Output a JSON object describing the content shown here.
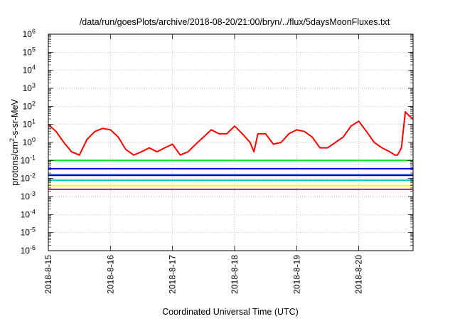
{
  "chart_data": {
    "type": "line",
    "title": "/data/run/goesPlots/archive/2018-08-20/21:00/bryn/../flux/5daysMoonFluxes.txt",
    "xlabel": "Coordinated Universal Time (UTC)",
    "ylabel": "protons/cm²-s-sr-MeV",
    "ylabel_parts": {
      "pre": "protons/cm",
      "sup": "2",
      "post": "-s-sr-MeV"
    },
    "y_scale": "log",
    "ylim": [
      1e-06,
      1000000
    ],
    "y_ticks": [
      {
        "value": 1e-06,
        "base": "10",
        "exp": "-6"
      },
      {
        "value": 1e-05,
        "base": "10",
        "exp": "-5"
      },
      {
        "value": 0.0001,
        "base": "10",
        "exp": "-4"
      },
      {
        "value": 0.001,
        "base": "10",
        "exp": "-3"
      },
      {
        "value": 0.01,
        "base": "10",
        "exp": "-2"
      },
      {
        "value": 0.1,
        "base": "10",
        "exp": "-1"
      },
      {
        "value": 1,
        "base": "10",
        "exp": "0"
      },
      {
        "value": 10,
        "base": "10",
        "exp": "1"
      },
      {
        "value": 100,
        "base": "10",
        "exp": "2"
      },
      {
        "value": 1000,
        "base": "10",
        "exp": "3"
      },
      {
        "value": 10000,
        "base": "10",
        "exp": "4"
      },
      {
        "value": 100000,
        "base": "10",
        "exp": "5"
      },
      {
        "value": 1000000,
        "base": "10",
        "exp": "6"
      }
    ],
    "xlim": [
      "2018-08-15T00:00",
      "2018-08-20T21:00"
    ],
    "x_ticks": [
      "2018-8-15",
      "2018-8-16",
      "2018-8-17",
      "2018-8-18",
      "2018-8-19",
      "2018-8-20"
    ],
    "grid": true,
    "series": [
      {
        "color": "#ff0000",
        "x": [
          "2018-08-15T00:00",
          "2018-08-15T03:00",
          "2018-08-15T06:00",
          "2018-08-15T09:00",
          "2018-08-15T12:00",
          "2018-08-15T15:00",
          "2018-08-15T18:00",
          "2018-08-15T21:00",
          "2018-08-16T00:00",
          "2018-08-16T03:00",
          "2018-08-16T06:00",
          "2018-08-16T09:00",
          "2018-08-16T12:00",
          "2018-08-16T15:00",
          "2018-08-16T18:00",
          "2018-08-16T21:00",
          "2018-08-17T00:00",
          "2018-08-17T03:00",
          "2018-08-17T06:00",
          "2018-08-17T09:00",
          "2018-08-17T12:00",
          "2018-08-17T15:00",
          "2018-08-17T18:00",
          "2018-08-17T21:00",
          "2018-08-18T00:00",
          "2018-08-18T03:00",
          "2018-08-18T06:00",
          "2018-08-18T07:30",
          "2018-08-18T09:00",
          "2018-08-18T12:00",
          "2018-08-18T15:00",
          "2018-08-18T18:00",
          "2018-08-18T21:00",
          "2018-08-19T00:00",
          "2018-08-19T03:00",
          "2018-08-19T06:00",
          "2018-08-19T09:00",
          "2018-08-19T12:00",
          "2018-08-19T15:00",
          "2018-08-19T18:00",
          "2018-08-19T21:00",
          "2018-08-20T00:00",
          "2018-08-20T03:00",
          "2018-08-20T06:00",
          "2018-08-20T09:00",
          "2018-08-20T12:00",
          "2018-08-20T14:00",
          "2018-08-20T15:00",
          "2018-08-20T16:30",
          "2018-08-20T18:00",
          "2018-08-20T19:30",
          "2018-08-20T21:00"
        ],
        "values": [
          10,
          4,
          1,
          0.3,
          0.2,
          1.5,
          4,
          6,
          5,
          2,
          0.4,
          0.2,
          0.3,
          0.5,
          0.3,
          0.5,
          0.8,
          0.2,
          0.3,
          0.8,
          2,
          5,
          3,
          3,
          8,
          3,
          1,
          0.3,
          3,
          3,
          0.8,
          1,
          3,
          5,
          4,
          2,
          0.5,
          0.5,
          1,
          2,
          8,
          15,
          4,
          1,
          0.5,
          0.3,
          0.2,
          0.2,
          0.5,
          50,
          30,
          20
        ]
      },
      {
        "color": "#00ee00",
        "x": [
          "2018-08-15T00:00",
          "2018-08-20T21:00"
        ],
        "values": [
          0.1,
          0.1
        ]
      },
      {
        "color": "#0000ff",
        "x": [
          "2018-08-15T00:00",
          "2018-08-20T21:00"
        ],
        "values": [
          0.035,
          0.035
        ]
      },
      {
        "color": "#1e90ff",
        "x": [
          "2018-08-15T00:00",
          "2018-08-20T21:00"
        ],
        "values": [
          0.016,
          0.016
        ]
      },
      {
        "color": "#0000aa",
        "x": [
          "2018-08-15T00:00",
          "2018-08-20T21:00"
        ],
        "values": [
          0.015,
          0.015
        ]
      },
      {
        "color": "#00c8c8",
        "x": [
          "2018-08-15T00:00",
          "2018-08-20T21:00"
        ],
        "values": [
          0.008,
          0.008
        ]
      },
      {
        "color": "#ffff00",
        "x": [
          "2018-08-15T00:00",
          "2018-08-20T21:00"
        ],
        "values": [
          0.004,
          0.004
        ]
      },
      {
        "color": "#993366",
        "x": [
          "2018-08-15T00:00",
          "2018-08-20T21:00"
        ],
        "values": [
          0.0025,
          0.0025
        ]
      }
    ]
  }
}
